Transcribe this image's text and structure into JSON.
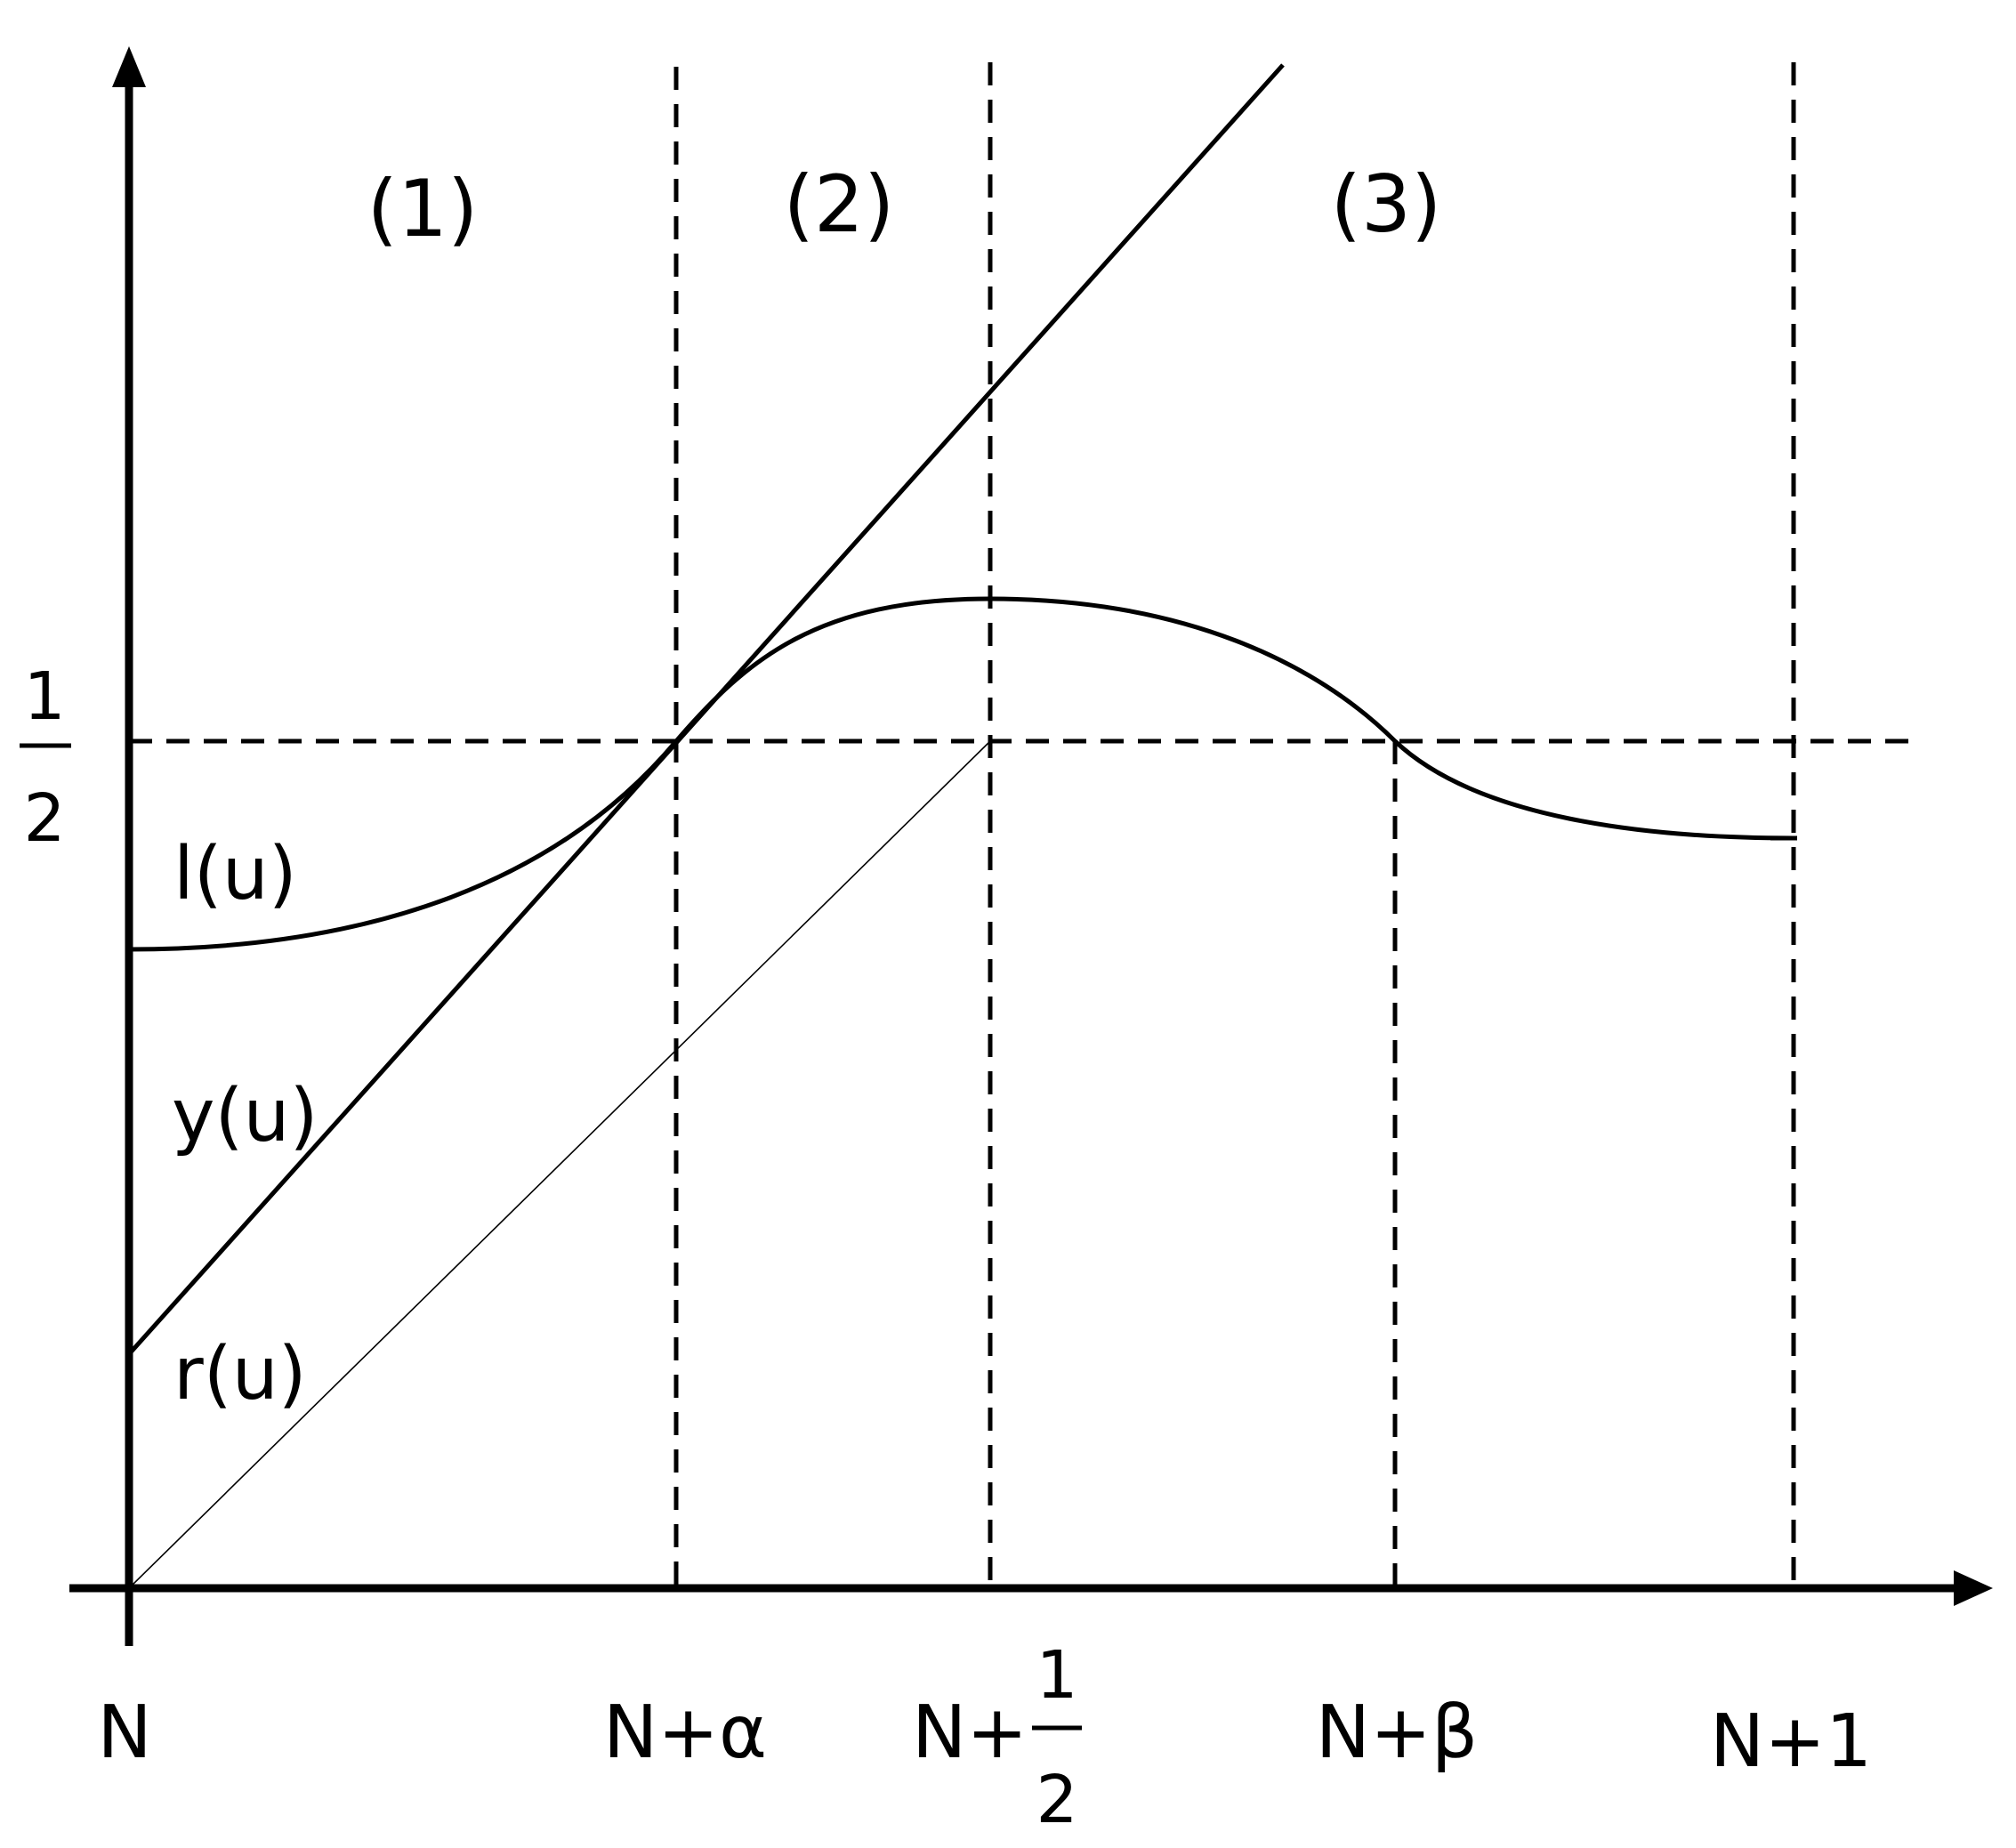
{
  "regions": [
    "(1)",
    "(2)",
    "(3)"
  ],
  "x_ticks": {
    "n": "N",
    "n_alpha": "N+α",
    "n_half_prefix": "N+",
    "n_half_num": "1",
    "n_half_den": "2",
    "n_beta": "N+β",
    "n_one": "N+1"
  },
  "y_tick": {
    "num": "1",
    "den": "2"
  },
  "curve_labels": {
    "l": "l(u)",
    "y": "y(u)",
    "r": "r(u)"
  }
}
